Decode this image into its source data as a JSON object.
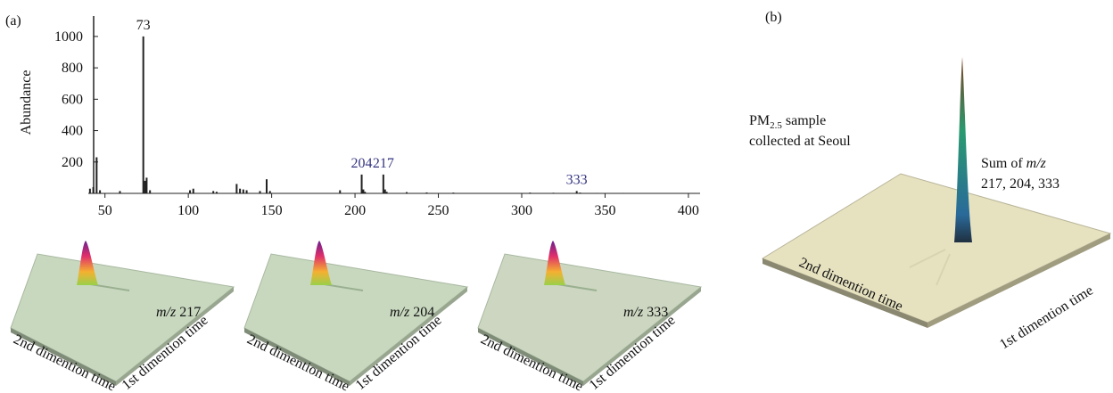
{
  "chart_data": {
    "type": "bar",
    "panel_label": "(a)",
    "y_label": "Abundance",
    "x": [
      41,
      43,
      45,
      47,
      59,
      73,
      74,
      75,
      77,
      101,
      103,
      115,
      117,
      129,
      131,
      133,
      135,
      143,
      147,
      149,
      191,
      204,
      205,
      206,
      217,
      218,
      219,
      231,
      243,
      259,
      305,
      319,
      333,
      335,
      345,
      361
    ],
    "values": [
      30,
      40,
      230,
      20,
      15,
      1000,
      80,
      100,
      20,
      20,
      30,
      15,
      10,
      60,
      30,
      25,
      20,
      15,
      90,
      15,
      20,
      120,
      25,
      10,
      120,
      25,
      10,
      8,
      6,
      5,
      5,
      4,
      15,
      5,
      3,
      3
    ],
    "peak_labels": [
      null,
      null,
      null,
      null,
      null,
      "73",
      null,
      null,
      null,
      null,
      null,
      null,
      null,
      null,
      null,
      null,
      null,
      null,
      null,
      null,
      null,
      "204",
      null,
      null,
      "217",
      null,
      null,
      null,
      null,
      null,
      null,
      null,
      "333",
      null,
      null,
      null
    ],
    "label_colors": [
      null,
      null,
      null,
      null,
      null,
      "#222222",
      null,
      null,
      null,
      null,
      null,
      null,
      null,
      null,
      null,
      null,
      null,
      null,
      null,
      null,
      null,
      "#333380",
      null,
      null,
      "#333380",
      null,
      null,
      null,
      null,
      null,
      null,
      null,
      "#333380",
      null,
      null,
      null
    ],
    "color": "#222222",
    "xlim": [
      40,
      407
    ],
    "ylim": [
      0,
      1130
    ],
    "xticks": [
      50,
      100,
      150,
      200,
      250,
      300,
      350,
      400
    ],
    "yticks": [
      200,
      400,
      600,
      800,
      1000
    ]
  },
  "surfaces": [
    {
      "label_prefix": "m/z",
      "label_value": "217",
      "axis_2nd": "2nd dimention time",
      "axis_1st": "1st dimention time"
    },
    {
      "label_prefix": "m/z",
      "label_value": "204",
      "axis_2nd": "2nd dimention time",
      "axis_1st": "1st dimention time"
    },
    {
      "label_prefix": "m/z",
      "label_value": "333",
      "axis_2nd": "2nd dimention time",
      "axis_1st": "1st dimention time"
    }
  ],
  "panel_b": {
    "panel_label": "(b)",
    "sample_prefix": "PM",
    "sample_sub": "2.5",
    "sample_suffix": " sample",
    "sample_line2": "collected at Seoul",
    "sum_prefix": "Sum of ",
    "sum_mz": "m/z",
    "sum_line2": "217, 204, 333",
    "axis_2nd": "2nd dimention time",
    "axis_1st": "1st dimention time"
  }
}
